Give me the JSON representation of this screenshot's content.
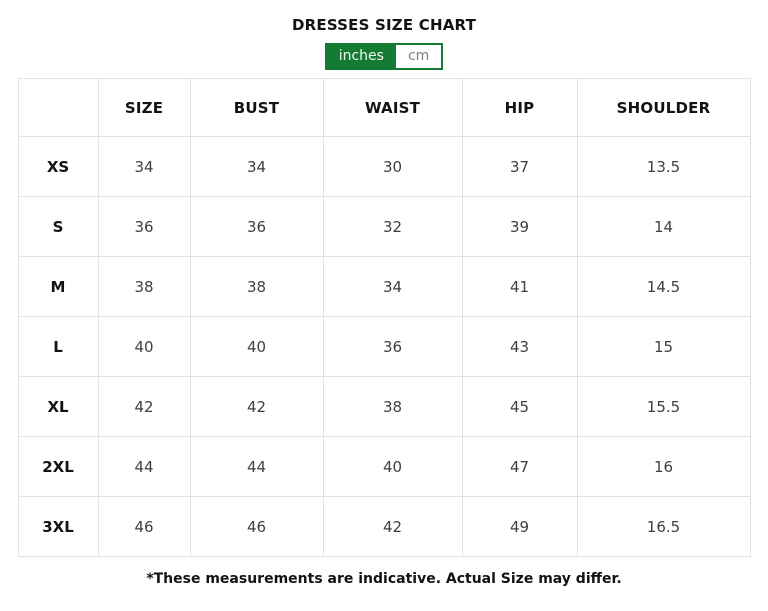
{
  "title": "DRESSES SIZE CHART",
  "unit_toggle": {
    "options": [
      {
        "label": "inches",
        "selected": true
      },
      {
        "label": "cm",
        "selected": false
      }
    ]
  },
  "table": {
    "columns": [
      "",
      "SIZE",
      "BUST",
      "WAIST",
      "HIP",
      "SHOULDER"
    ],
    "rows": [
      {
        "label": "XS",
        "values": [
          "34",
          "34",
          "30",
          "37",
          "13.5"
        ]
      },
      {
        "label": "S",
        "values": [
          "36",
          "36",
          "32",
          "39",
          "14"
        ]
      },
      {
        "label": "M",
        "values": [
          "38",
          "38",
          "34",
          "41",
          "14.5"
        ]
      },
      {
        "label": "L",
        "values": [
          "40",
          "40",
          "36",
          "43",
          "15"
        ]
      },
      {
        "label": "XL",
        "values": [
          "42",
          "42",
          "38",
          "45",
          "15.5"
        ]
      },
      {
        "label": "2XL",
        "values": [
          "44",
          "44",
          "40",
          "47",
          "16"
        ]
      },
      {
        "label": "3XL",
        "values": [
          "46",
          "46",
          "42",
          "49",
          "16.5"
        ]
      }
    ]
  },
  "footnote": "*These measurements are indicative. Actual Size may differ.",
  "colors": {
    "accent_green": "#157a33",
    "table_border": "#e3e3e3",
    "text_primary": "#131313",
    "text_values": "#3f3f3f",
    "unselected_unit_text": "#75828c"
  }
}
